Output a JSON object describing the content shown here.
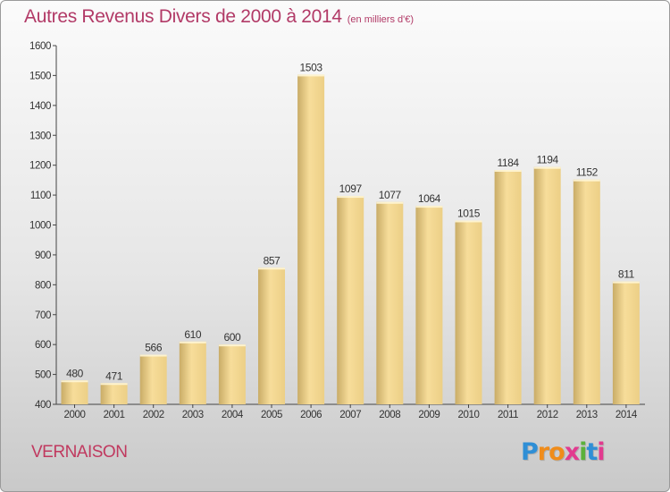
{
  "header": {
    "title": "Autres Revenus Divers de 2000 à 2014",
    "subtitle": "(en milliers d'€)"
  },
  "footer": {
    "city": "VERNAISON",
    "logo": [
      "P",
      "r",
      "o",
      "x",
      "i",
      "t",
      "i"
    ]
  },
  "colors": {
    "title": "#b23a67",
    "bar_light": "#f6dc98",
    "bar_dark": "#c9ac67",
    "logo": [
      "#2f8fd6",
      "#f08c1a",
      "#f08c1a",
      "#e23a8f",
      "#5bb13b",
      "#2f8fd6",
      "#e23a8f"
    ]
  },
  "chart_data": {
    "type": "bar",
    "title": "Autres Revenus Divers de 2000 à 2014",
    "subtitle": "(en milliers d'€)",
    "categories": [
      "2000",
      "2001",
      "2002",
      "2003",
      "2004",
      "2005",
      "2006",
      "2007",
      "2008",
      "2009",
      "2010",
      "2011",
      "2012",
      "2013",
      "2014"
    ],
    "values": [
      480,
      471,
      566,
      610,
      600,
      857,
      1503,
      1097,
      1077,
      1064,
      1015,
      1184,
      1194,
      1152,
      811
    ],
    "ylim": [
      400,
      1600
    ],
    "yticks": [
      400,
      500,
      600,
      700,
      800,
      900,
      1000,
      1100,
      1200,
      1300,
      1400,
      1500,
      1600
    ],
    "grid": false,
    "xlabel": "",
    "ylabel": ""
  }
}
